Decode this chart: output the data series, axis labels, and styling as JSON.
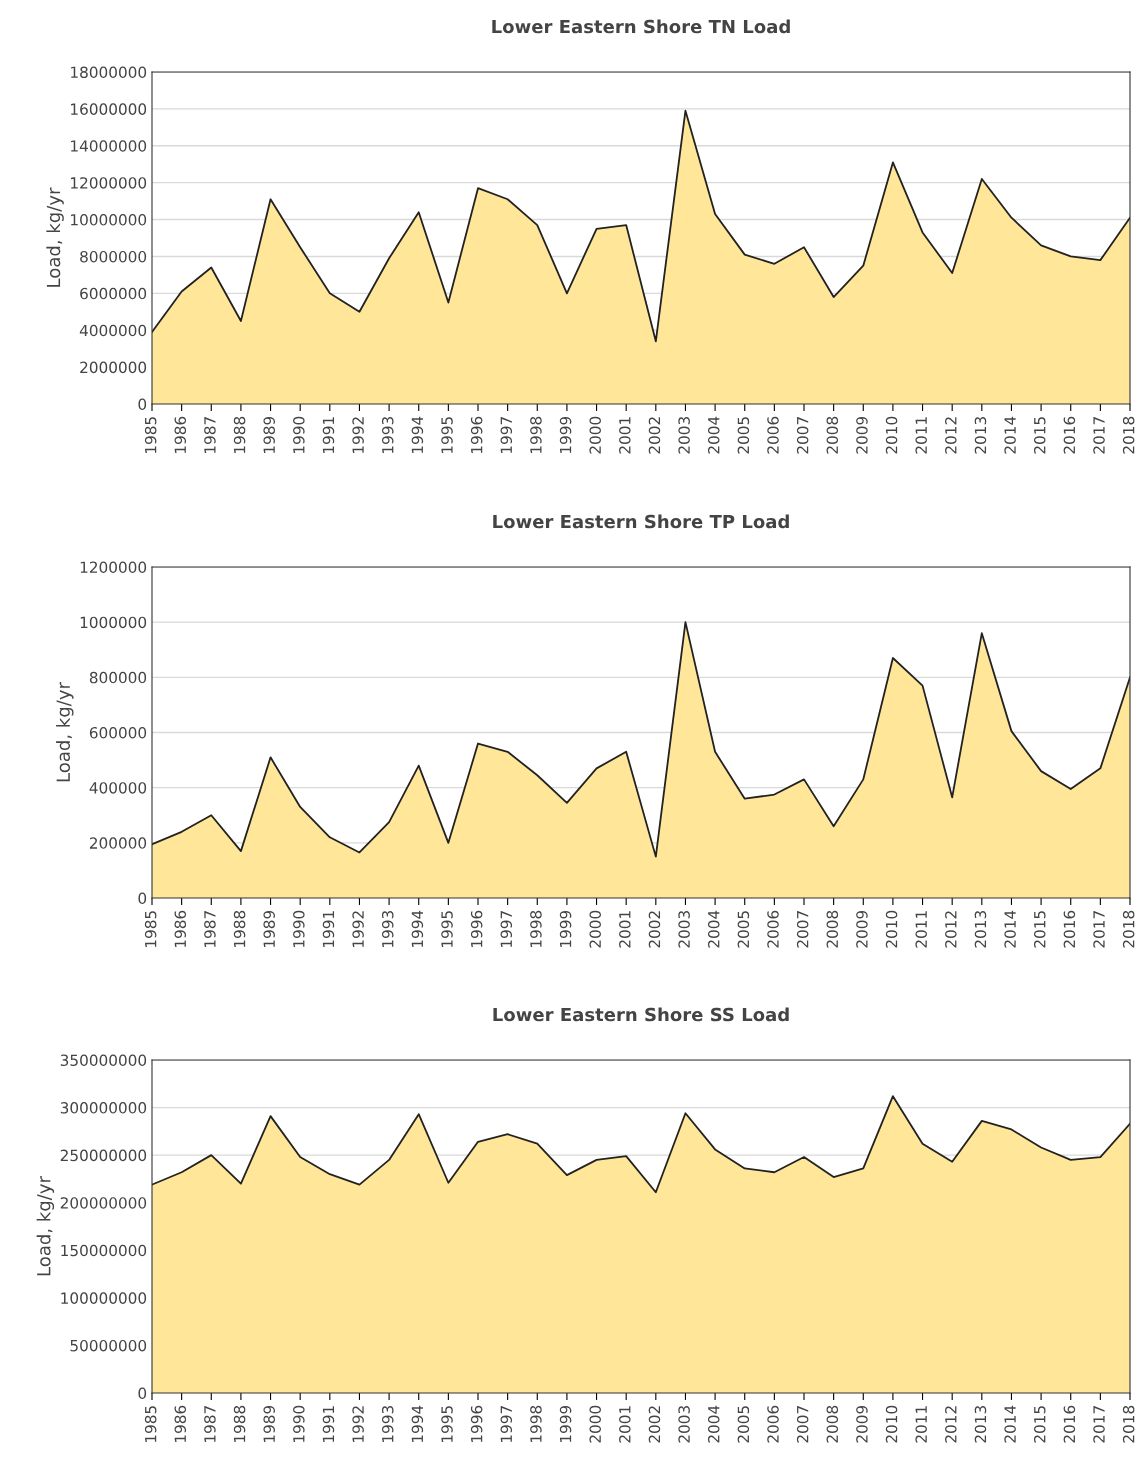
{
  "chart_data": [
    {
      "type": "area",
      "title": "Lower Eastern Shore TN Load",
      "ylabel": "Load, kg/yr",
      "categories": [
        "1985",
        "1986",
        "1987",
        "1988",
        "1989",
        "1990",
        "1991",
        "1992",
        "1993",
        "1994",
        "1995",
        "1996",
        "1997",
        "1998",
        "1999",
        "2000",
        "2001",
        "2002",
        "2003",
        "2004",
        "2005",
        "2006",
        "2007",
        "2008",
        "2009",
        "2010",
        "2011",
        "2012",
        "2013",
        "2014",
        "2015",
        "2016",
        "2017",
        "2018"
      ],
      "series": [
        {
          "color": "#ffe699",
          "values": [
            3900000,
            6100000,
            7400000,
            4500000,
            11100000,
            8500000,
            6000000,
            5000000,
            7900000,
            10400000,
            5500000,
            11700000,
            11100000,
            9700000,
            6000000,
            9500000,
            9700000,
            3400000,
            15900000,
            10300000,
            8100000,
            7600000,
            8500000,
            5800000,
            7500000,
            13100000,
            9300000,
            7100000,
            12200000,
            10100000,
            8600000,
            8000000,
            7800000,
            10100000
          ]
        }
      ],
      "ylim": [
        0,
        18000000
      ],
      "yticks": [
        0,
        2000000,
        4000000,
        6000000,
        8000000,
        10000000,
        12000000,
        14000000,
        16000000,
        18000000
      ],
      "grid": "y",
      "legend": false
    },
    {
      "type": "area",
      "title": "Lower Eastern Shore TP Load",
      "ylabel": "Load, kg/yr",
      "categories": [
        "1985",
        "1986",
        "1987",
        "1988",
        "1989",
        "1990",
        "1991",
        "1992",
        "1993",
        "1994",
        "1995",
        "1996",
        "1997",
        "1998",
        "1999",
        "2000",
        "2001",
        "2002",
        "2003",
        "2004",
        "2005",
        "2006",
        "2007",
        "2008",
        "2009",
        "2010",
        "2011",
        "2012",
        "2013",
        "2014",
        "2015",
        "2016",
        "2017",
        "2018"
      ],
      "series": [
        {
          "color": "#ffe699",
          "values": [
            195000,
            240000,
            300000,
            170000,
            510000,
            330000,
            220000,
            165000,
            275000,
            480000,
            200000,
            560000,
            530000,
            445000,
            345000,
            470000,
            530000,
            150000,
            1000000,
            530000,
            360000,
            375000,
            430000,
            260000,
            430000,
            870000,
            770000,
            365000,
            960000,
            605000,
            460000,
            395000,
            470000,
            800000
          ]
        }
      ],
      "ylim": [
        0,
        1200000
      ],
      "yticks": [
        0,
        200000,
        400000,
        600000,
        800000,
        1000000,
        1200000
      ],
      "grid": "y",
      "legend": false
    },
    {
      "type": "area",
      "title": "Lower Eastern Shore SS Load",
      "ylabel": "Load, kg/yr",
      "categories": [
        "1985",
        "1986",
        "1987",
        "1988",
        "1989",
        "1990",
        "1991",
        "1992",
        "1993",
        "1994",
        "1995",
        "1996",
        "1997",
        "1998",
        "1999",
        "2000",
        "2001",
        "2002",
        "2003",
        "2004",
        "2005",
        "2006",
        "2007",
        "2008",
        "2009",
        "2010",
        "2011",
        "2012",
        "2013",
        "2014",
        "2015",
        "2016",
        "2017",
        "2018"
      ],
      "series": [
        {
          "color": "#ffe699",
          "values": [
            219000000,
            232000000,
            250000000,
            220000000,
            291000000,
            248000000,
            230000000,
            219000000,
            245000000,
            293000000,
            221000000,
            264000000,
            272000000,
            262000000,
            229000000,
            245000000,
            249000000,
            211000000,
            294000000,
            256000000,
            236000000,
            232000000,
            248000000,
            227000000,
            236000000,
            312000000,
            262000000,
            243000000,
            286000000,
            277000000,
            258000000,
            245000000,
            248000000,
            283000000
          ]
        }
      ],
      "ylim": [
        0,
        350000000
      ],
      "yticks": [
        0,
        50000000,
        100000000,
        150000000,
        200000000,
        250000000,
        300000000,
        350000000
      ],
      "grid": "y",
      "legend": false
    }
  ]
}
